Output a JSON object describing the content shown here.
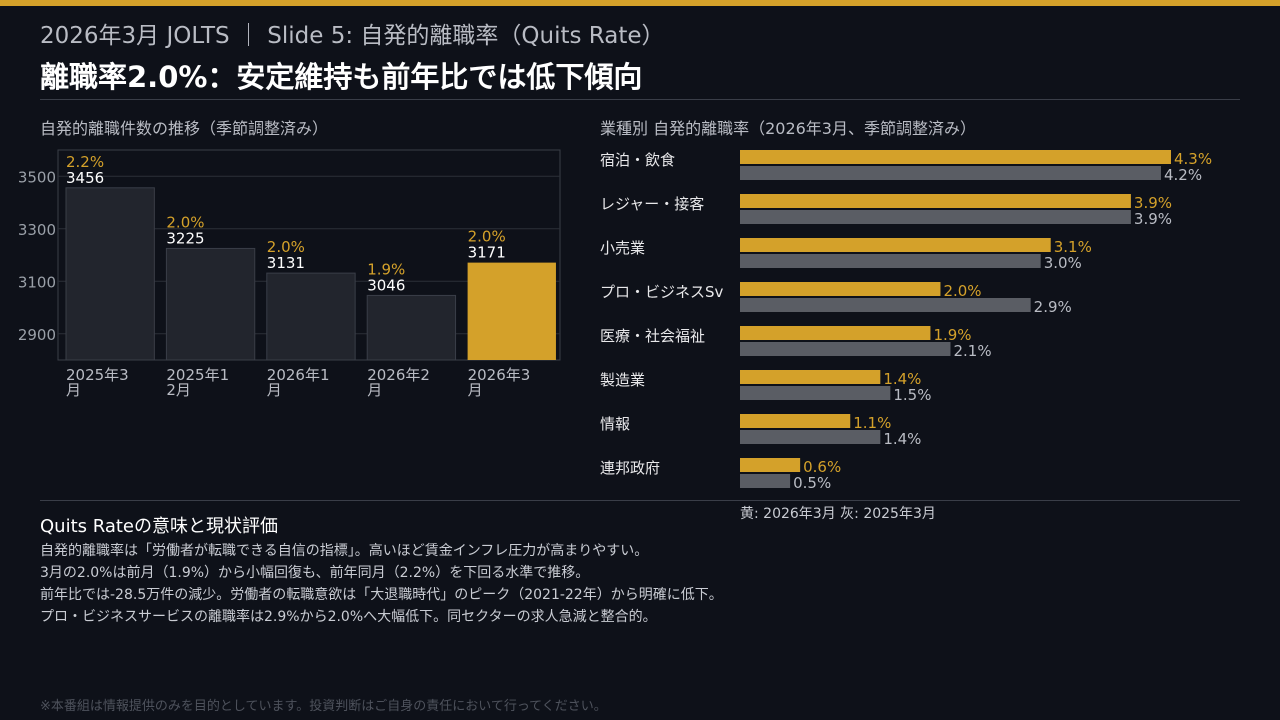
{
  "header": {
    "subtitle": "2026年3月 JOLTS ｜ Slide 5: 自発的離職率（Quits Rate）",
    "title": "離職率2.0%：安定維持も前年比では低下傾向"
  },
  "colors": {
    "accent": "#d4a12a",
    "bar_dark": "#22252d",
    "bar_gray": "#5a5d64",
    "background": "#0e1119"
  },
  "left_chart": {
    "title": "自発的離職件数の推移（季節調整済み）"
  },
  "right_chart": {
    "title": "業種別 自発的離職率（2026年3月、季節調整済み）",
    "legend_note": "黄: 2026年3月  灰: 2025年3月"
  },
  "chart_data": [
    {
      "type": "bar",
      "title": "自発的離職件数の推移（季節調整済み）",
      "categories": [
        "2025年3月",
        "2025年12月",
        "2026年1月",
        "2026年2月",
        "2026年3月"
      ],
      "category_lines": [
        [
          "2025年3",
          "月"
        ],
        [
          "2025年1",
          "2月"
        ],
        [
          "2026年1",
          "月"
        ],
        [
          "2026年2",
          "月"
        ],
        [
          "2026年3",
          "月"
        ]
      ],
      "values": [
        3456,
        3225,
        3131,
        3046,
        3171
      ],
      "rate_labels": [
        "2.2%",
        "2.0%",
        "2.0%",
        "1.9%",
        "2.0%"
      ],
      "highlight_index": 4,
      "yticks": [
        2900,
        3100,
        3300,
        3500
      ],
      "ylim": [
        2800,
        3600
      ],
      "grid": true,
      "xlabel": "",
      "ylabel": ""
    },
    {
      "type": "bar",
      "orientation": "horizontal",
      "title": "業種別 自発的離職率（2026年3月、季節調整済み）",
      "categories": [
        "宿泊・飲食",
        "レジャー・接客",
        "小売業",
        "プロ・ビジネスSv",
        "医療・社会福祉",
        "製造業",
        "情報",
        "連邦政府"
      ],
      "series": [
        {
          "values": [
            4.3,
            3.9,
            3.1,
            2.0,
            1.9,
            1.4,
            1.1,
            0.6
          ],
          "labels": [
            "4.3%",
            "3.9%",
            "3.1%",
            "2.0%",
            "1.9%",
            "1.4%",
            "1.1%",
            "0.6%"
          ]
        },
        {
          "values": [
            4.2,
            3.9,
            3.0,
            2.9,
            2.1,
            1.5,
            1.4,
            0.5
          ],
          "labels": [
            "4.2%",
            "3.9%",
            "3.0%",
            "2.9%",
            "2.1%",
            "1.5%",
            "1.4%",
            "0.5%"
          ]
        }
      ],
      "xlim": [
        0,
        4.3
      ]
    }
  ],
  "section": {
    "heading": "Quits Rateの意味と現状評価",
    "lines": [
      "自発的離職率は「労働者が転職できる自信の指標」。高いほど賃金インフレ圧力が高まりやすい。",
      "3月の2.0%は前月（1.9%）から小幅回復も、前年同月（2.2%）を下回る水準で推移。",
      "前年比では-28.5万件の減少。労働者の転職意欲は「大退職時代」のピーク（2021-22年）から明確に低下。",
      "プロ・ビジネスサービスの離職率は2.9%から2.0%へ大幅低下。同セクターの求人急減と整合的。"
    ]
  },
  "disclaimer": "※本番組は情報提供のみを目的としています。投資判断はご自身の責任において行ってください。"
}
